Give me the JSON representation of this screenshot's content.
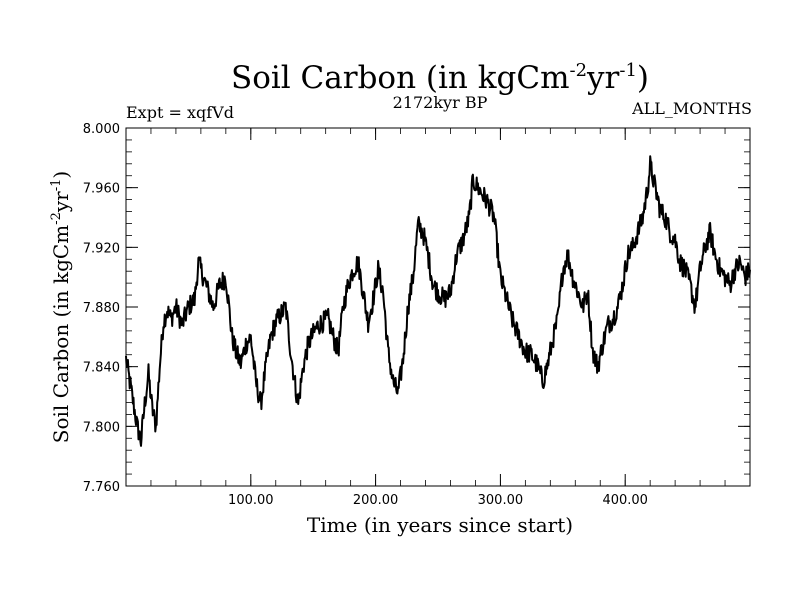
{
  "chart_data": {
    "type": "line",
    "title": {
      "prefix": "Soil Carbon (in kgCm",
      "sup1": "-2",
      "mid": "yr",
      "sup2": "-1",
      "suffix": ")"
    },
    "subtitle_left": "Expt = xqfVd",
    "subtitle_center": "2172kyr BP",
    "subtitle_right": "ALL_MONTHS",
    "xlabel": "Time (in years since start)",
    "ylabel": {
      "prefix": "Soil Carbon (in kgCm",
      "sup1": "-2",
      "mid": "yr",
      "sup2": "-1",
      "suffix": ")"
    },
    "xlim": [
      0,
      500
    ],
    "ylim": [
      7.76,
      8.0
    ],
    "x_ticks": [
      {
        "value": 100,
        "label": "100.00"
      },
      {
        "value": 200,
        "label": "200.00"
      },
      {
        "value": 300,
        "label": "300.00"
      },
      {
        "value": 400,
        "label": "400.00"
      }
    ],
    "y_ticks": [
      {
        "value": 7.76,
        "label": "7.760"
      },
      {
        "value": 7.8,
        "label": "7.800"
      },
      {
        "value": 7.84,
        "label": "7.840"
      },
      {
        "value": 7.88,
        "label": "7.880"
      },
      {
        "value": 7.92,
        "label": "7.920"
      },
      {
        "value": 7.96,
        "label": "7.960"
      },
      {
        "value": 8.0,
        "label": "8.000"
      }
    ],
    "series": [
      {
        "name": "Soil Carbon",
        "color": "#000000",
        "x": [
          0,
          3,
          6,
          9,
          12,
          15,
          18,
          21,
          24,
          27,
          30,
          33,
          36,
          40,
          45,
          50,
          55,
          58,
          62,
          66,
          70,
          75,
          80,
          85,
          88,
          92,
          96,
          100,
          104,
          108,
          112,
          116,
          120,
          124,
          128,
          132,
          136,
          138,
          142,
          146,
          150,
          154,
          158,
          162,
          166,
          170,
          174,
          178,
          182,
          186,
          190,
          194,
          198,
          202,
          206,
          210,
          214,
          218,
          222,
          226,
          230,
          234,
          238,
          242,
          246,
          250,
          255,
          260,
          265,
          270,
          275,
          278,
          282,
          286,
          290,
          295,
          300,
          305,
          310,
          315,
          320,
          325,
          330,
          334,
          338,
          342,
          346,
          350,
          354,
          358,
          362,
          366,
          370,
          374,
          378,
          382,
          386,
          390,
          394,
          398,
          402,
          406,
          410,
          414,
          418,
          420,
          424,
          428,
          432,
          436,
          440,
          444,
          448,
          452,
          456,
          460,
          464,
          468,
          472,
          476,
          480,
          484,
          488,
          492,
          496,
          500
        ],
        "y": [
          7.845,
          7.83,
          7.815,
          7.8,
          7.79,
          7.815,
          7.835,
          7.812,
          7.8,
          7.84,
          7.87,
          7.878,
          7.872,
          7.88,
          7.868,
          7.88,
          7.885,
          7.91,
          7.9,
          7.89,
          7.88,
          7.895,
          7.9,
          7.86,
          7.85,
          7.842,
          7.855,
          7.86,
          7.83,
          7.815,
          7.84,
          7.86,
          7.87,
          7.875,
          7.88,
          7.85,
          7.825,
          7.815,
          7.84,
          7.855,
          7.862,
          7.868,
          7.87,
          7.872,
          7.86,
          7.85,
          7.88,
          7.895,
          7.905,
          7.91,
          7.89,
          7.87,
          7.885,
          7.905,
          7.89,
          7.85,
          7.83,
          7.822,
          7.845,
          7.88,
          7.9,
          7.935,
          7.93,
          7.915,
          7.895,
          7.89,
          7.885,
          7.89,
          7.915,
          7.925,
          7.94,
          7.965,
          7.96,
          7.955,
          7.95,
          7.94,
          7.9,
          7.885,
          7.87,
          7.86,
          7.85,
          7.848,
          7.84,
          7.83,
          7.842,
          7.858,
          7.872,
          7.905,
          7.915,
          7.9,
          7.89,
          7.88,
          7.89,
          7.85,
          7.84,
          7.855,
          7.868,
          7.872,
          7.88,
          7.895,
          7.915,
          7.92,
          7.93,
          7.94,
          7.96,
          7.975,
          7.96,
          7.945,
          7.94,
          7.93,
          7.925,
          7.91,
          7.905,
          7.895,
          7.88,
          7.905,
          7.92,
          7.93,
          7.915,
          7.905,
          7.9,
          7.895,
          7.905,
          7.91,
          7.9,
          7.905
        ]
      }
    ]
  }
}
